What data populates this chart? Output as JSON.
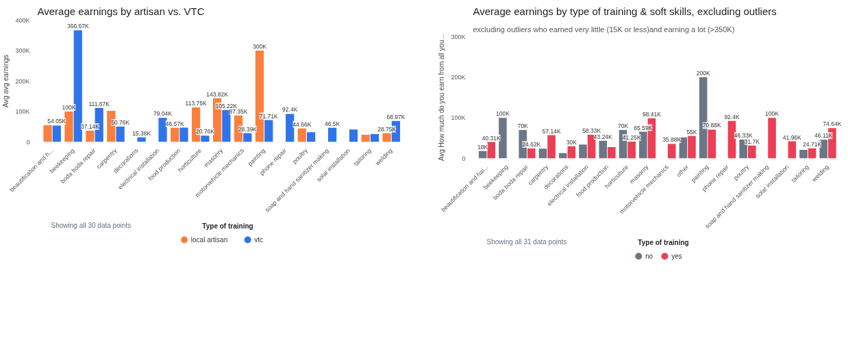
{
  "chart_data": [
    {
      "type": "bar",
      "title": "Average earnings by artisan vs. VTC",
      "ylabel": "Avg avg earnings",
      "legend_title": "Type of training",
      "legend": "bottom",
      "annotations": [
        "Showing all 30 data points"
      ],
      "categories": [
        "beautification and h...",
        "beekeeping",
        "boda boda repair",
        "carpentry",
        "decorations",
        "electrical installation",
        "food production",
        "horticulture",
        "masonry",
        "motorvehicle mechanics",
        "painting",
        "phone repair",
        "poultry",
        "soap and hand sanitizer making",
        "solar installation",
        "tailoring",
        "welding"
      ],
      "ylim": [
        0,
        400000
      ],
      "yticks": [
        {
          "value": 0,
          "label": "0"
        },
        {
          "value": 100000,
          "label": "100K"
        },
        {
          "value": 200000,
          "label": "200K"
        },
        {
          "value": 300000,
          "label": "300K"
        },
        {
          "value": 400000,
          "label": "400K"
        }
      ],
      "series": [
        {
          "name": "local artisan",
          "color": "#fd7f3c",
          "values": [
            55000,
            100000,
            37140,
            102000,
            null,
            null,
            46570,
            113750,
            143820,
            87350,
            300000,
            null,
            44660,
            null,
            null,
            23500,
            28750
          ],
          "value_labels": [
            null,
            "100K",
            "37.14K",
            null,
            null,
            null,
            "46.57K",
            "113.75K",
            "143.82K",
            "87.35K",
            "300K",
            null,
            "44.66K",
            null,
            null,
            null,
            "28.75K"
          ]
        },
        {
          "name": "vtc",
          "color": "#2f74eb",
          "values": [
            54050,
            366670,
            111670,
            50760,
            15380,
            79040,
            47000,
            20760,
            105220,
            28390,
            71710,
            92400,
            32000,
            46500,
            41000,
            26000,
            68970
          ],
          "value_labels": [
            "54.05K",
            "366.67K",
            "111.67K",
            "50.76K",
            "15.38K",
            "79.04K",
            null,
            "20.76K",
            "105.22K",
            "28.39K",
            "71.71K",
            "92.4K",
            null,
            "46.5K",
            null,
            null,
            "68.97K"
          ]
        }
      ]
    },
    {
      "type": "bar",
      "title": "Average earnings by type of training & soft skills, excluding outliers",
      "subtitle": "excluding outliers who earned very little (15K or less)and earning a lot (>350K)",
      "ylabel": "Avg How much do you earn from all you...",
      "legend_title": "Type of training",
      "legend": "bottom",
      "annotations": [
        "Showing all 31 data points"
      ],
      "categories": [
        "beautification and hai...",
        "beekeeping",
        "boda boda repair",
        "carpentry",
        "decorations",
        "electrical installation",
        "food production",
        "horticulture",
        "masonry",
        "motorvehicle mechanics",
        "other",
        "painting",
        "phone repair",
        "poultry",
        "soap and hand sanitizer making",
        "solar installation",
        "tailoring",
        "welding"
      ],
      "ylim": [
        0,
        300000
      ],
      "yticks": [
        {
          "value": 0,
          "label": "0"
        },
        {
          "value": 100000,
          "label": "100K"
        },
        {
          "value": 200000,
          "label": "200K"
        },
        {
          "value": 300000,
          "label": "300K"
        }
      ],
      "series": [
        {
          "name": "no",
          "color": "#6b7686",
          "values": [
            18000,
            100000,
            70000,
            24000,
            13000,
            34000,
            43240,
            70000,
            65590,
            null,
            52000,
            200000,
            null,
            46330,
            null,
            null,
            21000,
            46110
          ],
          "value_labels": [
            "18K",
            "100K",
            "70K",
            null,
            null,
            null,
            "43.24K",
            "70K",
            "65.59K",
            null,
            null,
            "200K",
            null,
            "46.33K",
            null,
            null,
            null,
            "46.11K"
          ]
        },
        {
          "name": "yes",
          "color": "#ee3e54",
          "values": [
            40310,
            null,
            24620,
            57140,
            30000,
            58330,
            28000,
            41250,
            98410,
            35880,
            55000,
            70880,
            92400,
            31700,
            100000,
            41960,
            24710,
            74640
          ],
          "value_labels": [
            "40.31K",
            null,
            "24.62K",
            "57.14K",
            "30K",
            "58.33K",
            null,
            "41.25K",
            "98.41K",
            "35.88K",
            "55K",
            "70.88K",
            "92.4K",
            "31.7K",
            "100K",
            "41.96K",
            "24.71K",
            "74.64K"
          ]
        }
      ]
    }
  ]
}
